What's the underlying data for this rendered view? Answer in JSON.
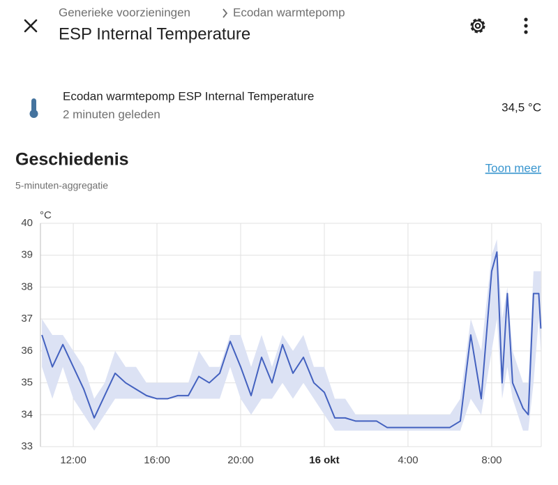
{
  "header": {
    "breadcrumb": [
      "Generieke voorzieningen",
      "Ecodan warmtepomp"
    ],
    "title": "ESP Internal Temperature"
  },
  "entity": {
    "name": "Ecodan warmtepomp ESP Internal Temperature",
    "last_changed": "2 minuten geleden",
    "state": "34,5 °C"
  },
  "history": {
    "title": "Geschiedenis",
    "more": "Toon meer",
    "subtitle": "5-minuten-aggregatie"
  },
  "chart_data": {
    "type": "line",
    "y_label": "°C",
    "color": "#4361bf",
    "band_color": "#dce2f4",
    "grid": true,
    "ylim": [
      33,
      40
    ],
    "yticks": [
      33,
      34,
      35,
      36,
      37,
      38,
      39,
      40
    ],
    "xlim": [
      10.43,
      34.37
    ],
    "xticks": [
      {
        "value": 12,
        "label": "12:00"
      },
      {
        "value": 16,
        "label": "16:00"
      },
      {
        "value": 20,
        "label": "20:00"
      },
      {
        "value": 24,
        "label": "16 okt"
      },
      {
        "value": 28,
        "label": "4:00"
      },
      {
        "value": 32,
        "label": "8:00"
      }
    ],
    "bold_ticks": [
      "16 okt"
    ],
    "x": [
      10.5,
      11,
      11.5,
      12,
      12.5,
      13,
      13.5,
      14,
      14.5,
      15,
      15.5,
      16,
      16.5,
      17,
      17.5,
      18,
      18.5,
      19,
      19.5,
      20,
      20.5,
      21,
      21.5,
      22,
      22.5,
      23,
      23.5,
      24,
      24.5,
      25,
      25.5,
      26,
      26.5,
      27,
      27.5,
      28,
      28.5,
      29,
      29.5,
      30,
      30.5,
      31,
      31.5,
      32,
      32.25,
      32.5,
      32.75,
      33,
      33.5,
      33.75,
      34,
      34.25,
      34.35
    ],
    "values": [
      36.5,
      35.5,
      36.2,
      35.5,
      34.8,
      33.9,
      34.6,
      35.3,
      35.0,
      34.8,
      34.6,
      34.5,
      34.5,
      34.6,
      34.6,
      35.2,
      35.0,
      35.3,
      36.3,
      35.5,
      34.6,
      35.8,
      35.0,
      36.2,
      35.3,
      35.8,
      35.0,
      34.7,
      33.9,
      33.9,
      33.8,
      33.8,
      33.8,
      33.6,
      33.6,
      33.6,
      33.6,
      33.6,
      33.6,
      33.6,
      33.8,
      36.5,
      34.5,
      38.5,
      39.1,
      35.0,
      37.8,
      35.0,
      34.2,
      34.0,
      37.8,
      37.8,
      36.7
    ],
    "band": {
      "lower": [
        35.5,
        34.5,
        35.5,
        34.5,
        34.0,
        33.5,
        34.0,
        34.5,
        34.5,
        34.5,
        34.5,
        34.5,
        34.5,
        34.5,
        34.5,
        34.5,
        34.5,
        34.5,
        35.5,
        34.5,
        34.0,
        34.5,
        34.5,
        35.0,
        34.5,
        35.0,
        34.5,
        34.0,
        33.5,
        33.5,
        33.5,
        33.5,
        33.5,
        33.5,
        33.5,
        33.5,
        33.5,
        33.5,
        33.5,
        33.5,
        33.5,
        34.5,
        34.0,
        36.0,
        37.0,
        34.5,
        35.5,
        34.5,
        33.5,
        33.5,
        35.0,
        37.0,
        36.0
      ],
      "upper": [
        37.0,
        36.5,
        36.5,
        36.0,
        35.5,
        34.5,
        35.0,
        36.0,
        35.5,
        35.5,
        35.0,
        35.0,
        35.0,
        35.0,
        35.0,
        36.0,
        35.5,
        35.5,
        36.5,
        36.5,
        35.5,
        36.5,
        35.5,
        36.5,
        36.0,
        36.5,
        35.5,
        35.5,
        34.5,
        34.5,
        34.0,
        34.0,
        34.0,
        34.0,
        34.0,
        34.0,
        34.0,
        34.0,
        34.0,
        34.0,
        34.5,
        37.0,
        36.0,
        39.0,
        39.5,
        37.0,
        38.0,
        36.0,
        35.0,
        35.0,
        38.5,
        38.5,
        38.5
      ]
    }
  }
}
